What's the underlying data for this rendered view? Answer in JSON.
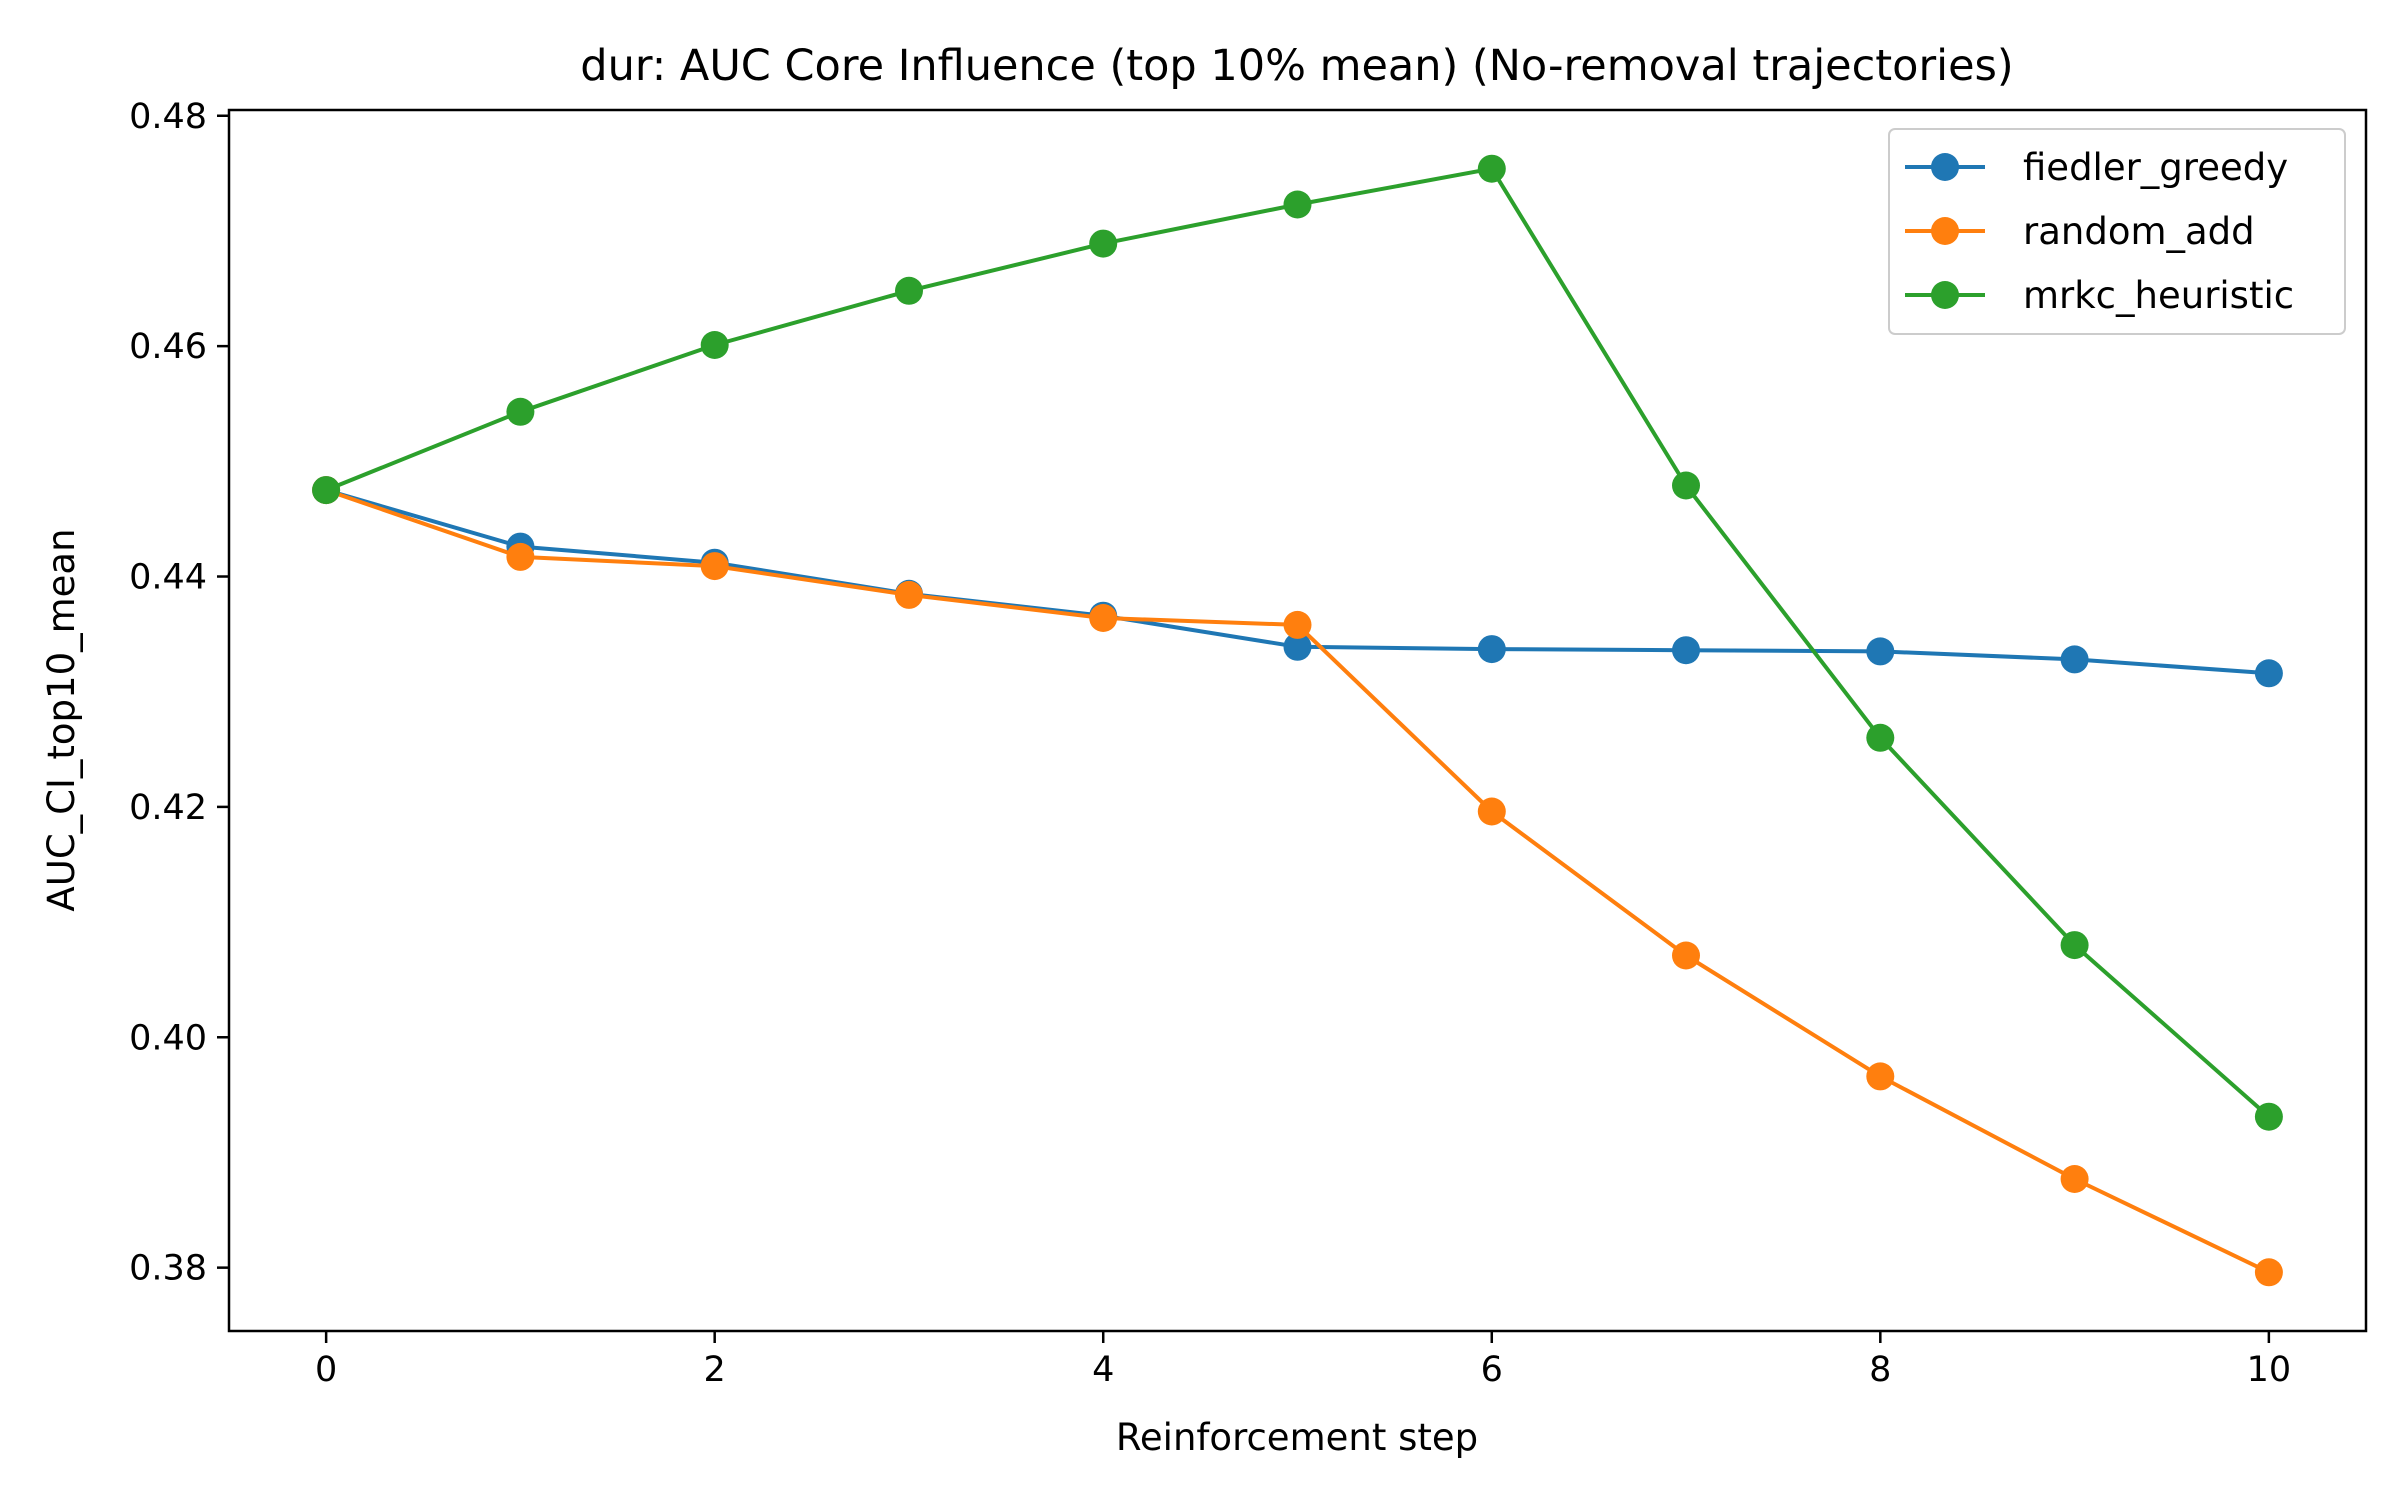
{
  "chart_data": {
    "type": "line",
    "title": "dur: AUC Core Influence (top 10% mean) (No-removal trajectories)",
    "xlabel": "Reinforcement step",
    "ylabel": "AUC_CI_top10_mean",
    "xlim": [
      -0.5,
      10.5
    ],
    "ylim": [
      0.3745,
      0.4805
    ],
    "xticks": [
      0,
      2,
      4,
      6,
      8,
      10
    ],
    "yticks": [
      0.38,
      0.4,
      0.42,
      0.44,
      0.46,
      0.48
    ],
    "ytick_labels": [
      "0.38",
      "0.40",
      "0.42",
      "0.44",
      "0.46",
      "0.48"
    ],
    "grid": false,
    "legend_position": "top-right",
    "x": [
      0,
      1,
      2,
      3,
      4,
      5,
      6,
      7,
      8,
      9,
      10
    ],
    "series": [
      {
        "name": "fiedler_greedy",
        "color": "#1f77b4",
        "values": [
          0.4475,
          0.4426,
          0.4412,
          0.4385,
          0.4366,
          0.4339,
          0.4337,
          0.4336,
          0.4335,
          0.4328,
          0.4316
        ]
      },
      {
        "name": "random_add",
        "color": "#ff7f0e",
        "values": [
          0.4475,
          0.4417,
          0.4409,
          0.4384,
          0.4364,
          0.4358,
          0.4196,
          0.4071,
          0.3966,
          0.3877,
          0.3796
        ]
      },
      {
        "name": "mrkc_heuristic",
        "color": "#2ca02c",
        "values": [
          0.4475,
          0.4543,
          0.4601,
          0.4648,
          0.4689,
          0.4723,
          0.4754,
          0.4479,
          0.426,
          0.408,
          0.3931
        ]
      }
    ]
  }
}
